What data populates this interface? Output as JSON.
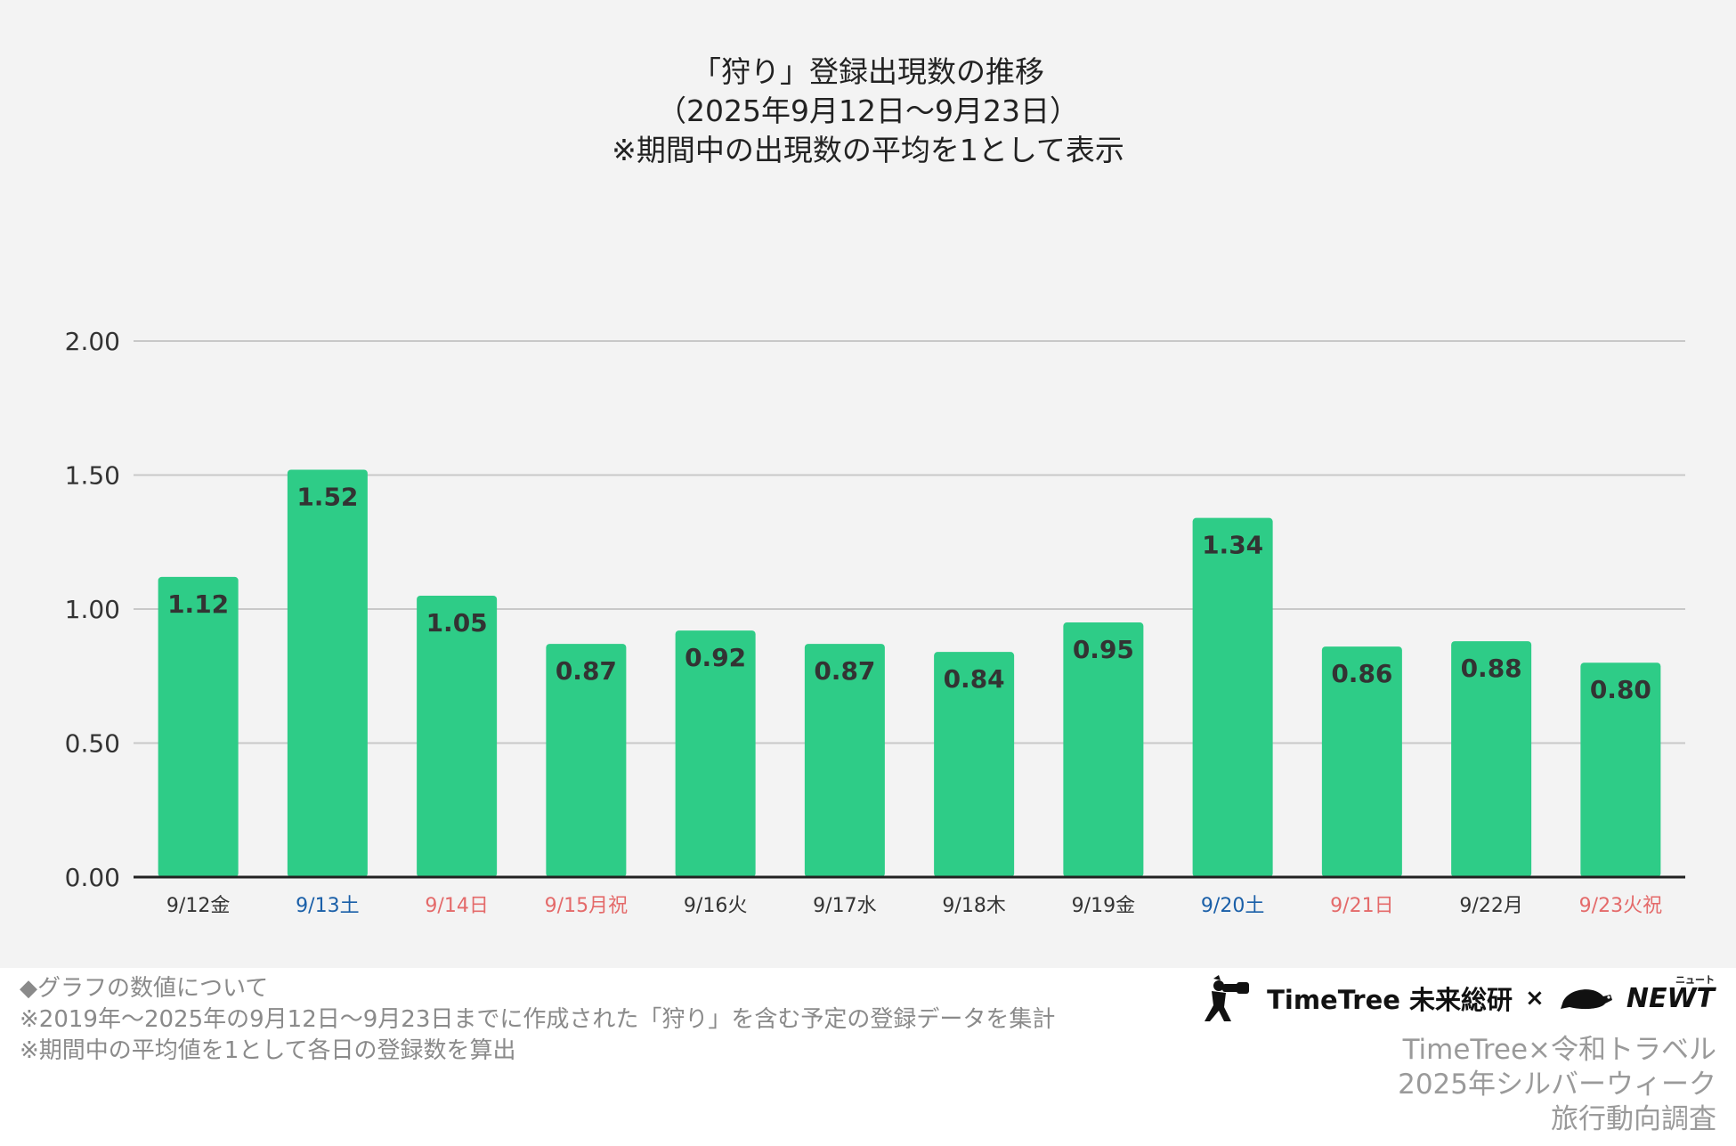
{
  "chart_data": {
    "type": "bar",
    "title_lines": [
      "「狩り」登録出現数の推移",
      "（2025年9月12日〜9月23日）",
      "※期間中の出現数の平均を1として表示"
    ],
    "categories": [
      "9/12金",
      "9/13土",
      "9/14日",
      "9/15月祝",
      "9/16火",
      "9/17水",
      "9/18木",
      "9/19金",
      "9/20土",
      "9/21日",
      "9/22月",
      "9/23火祝"
    ],
    "category_colors": [
      "#333333",
      "#1a5fa8",
      "#e46a6a",
      "#e46a6a",
      "#333333",
      "#333333",
      "#333333",
      "#333333",
      "#1a5fa8",
      "#e46a6a",
      "#333333",
      "#e46a6a"
    ],
    "values": [
      1.12,
      1.52,
      1.05,
      0.87,
      0.92,
      0.87,
      0.84,
      0.95,
      1.34,
      0.86,
      0.88,
      0.8
    ],
    "data_labels": [
      "1.12",
      "1.52",
      "1.05",
      "0.87",
      "0.92",
      "0.87",
      "0.84",
      "0.95",
      "1.34",
      "0.86",
      "0.88",
      "0.80"
    ],
    "y_ticks": [
      "0.00",
      "0.50",
      "1.00",
      "1.50",
      "2.00"
    ],
    "ylim": [
      0,
      2
    ],
    "grid": true,
    "bar_color": "#2ecc87"
  },
  "notes": [
    "◆グラフの数値について",
    "※2019年〜2025年の9月12日〜9月23日までに作成された「狩り」を含む予定の登録データを集計",
    "※期間中の平均値を1として各日の登録数を算出"
  ],
  "brand": {
    "timetree": "TimeTree 未来総研",
    "times": "×",
    "newt": "NEWT",
    "newt_kana": "ニュート",
    "logo_icon": "binoculars-person-icon",
    "newt_icon": "turtle-icon"
  },
  "survey": [
    "TimeTree×令和トラベル",
    "2025年シルバーウィーク",
    "旅行動向調査"
  ]
}
